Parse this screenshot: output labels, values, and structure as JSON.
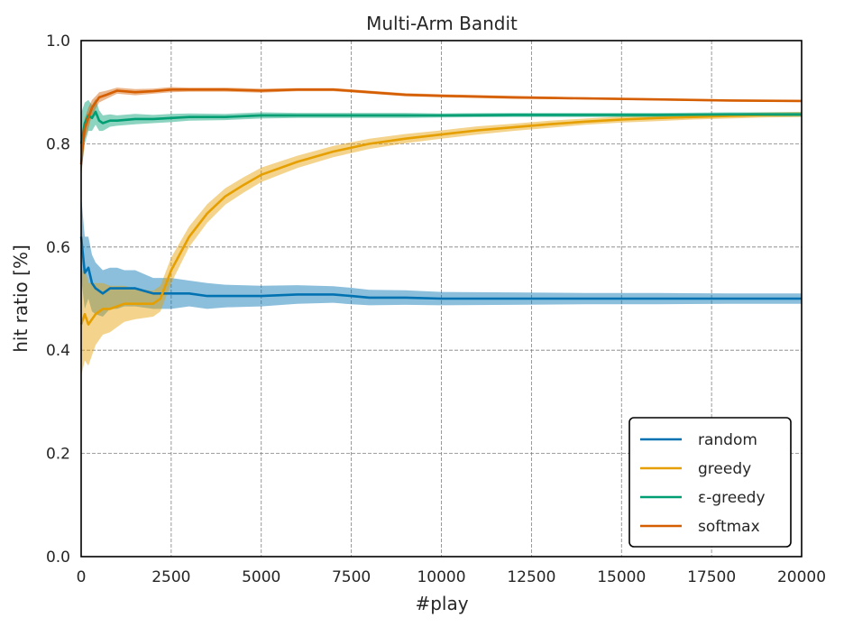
{
  "chart_data": {
    "type": "line",
    "title": "Multi-Arm Bandit",
    "xlabel": "#play",
    "ylabel": "hit ratio [%]",
    "xlim": [
      0,
      20000
    ],
    "ylim": [
      0.0,
      1.0
    ],
    "x_ticks": [
      0,
      2500,
      5000,
      7500,
      10000,
      12500,
      15000,
      17500,
      20000
    ],
    "y_ticks": [
      0.0,
      0.2,
      0.4,
      0.6,
      0.8,
      1.0
    ],
    "x_tick_labels": [
      "0",
      "2500",
      "5000",
      "7500",
      "10000",
      "12500",
      "15000",
      "17500",
      "20000"
    ],
    "y_tick_labels": [
      "0.0",
      "0.2",
      "0.4",
      "0.6",
      "0.8",
      "1.0"
    ],
    "grid": true,
    "legend_position": "lower-right",
    "series": [
      {
        "name": "random",
        "color": "#0072b2",
        "x": [
          0,
          100,
          200,
          300,
          400,
          600,
          800,
          1000,
          1200,
          1500,
          2000,
          2500,
          3000,
          3500,
          4000,
          5000,
          6000,
          7000,
          7500,
          8000,
          9000,
          10000,
          12000,
          14000,
          16000,
          18000,
          20000
        ],
        "y": [
          0.62,
          0.55,
          0.56,
          0.53,
          0.52,
          0.51,
          0.52,
          0.52,
          0.52,
          0.52,
          0.51,
          0.51,
          0.51,
          0.505,
          0.505,
          0.505,
          0.508,
          0.508,
          0.505,
          0.502,
          0.502,
          0.5,
          0.5,
          0.5,
          0.5,
          0.5,
          0.5
        ],
        "band": [
          0.08,
          0.07,
          0.06,
          0.055,
          0.05,
          0.045,
          0.04,
          0.04,
          0.035,
          0.035,
          0.03,
          0.03,
          0.025,
          0.025,
          0.022,
          0.02,
          0.018,
          0.016,
          0.016,
          0.015,
          0.014,
          0.013,
          0.012,
          0.011,
          0.011,
          0.01,
          0.01
        ]
      },
      {
        "name": "greedy",
        "color": "#e69f00",
        "x": [
          0,
          100,
          200,
          300,
          400,
          600,
          800,
          1000,
          1200,
          1500,
          2000,
          2200,
          2500,
          3000,
          3500,
          4000,
          4500,
          5000,
          6000,
          7000,
          8000,
          9000,
          10000,
          11000,
          12000,
          13000,
          14000,
          15000,
          16000,
          17000,
          18000,
          19000,
          20000
        ],
        "y": [
          0.45,
          0.47,
          0.45,
          0.46,
          0.47,
          0.48,
          0.48,
          0.485,
          0.49,
          0.49,
          0.49,
          0.5,
          0.555,
          0.62,
          0.665,
          0.698,
          0.72,
          0.74,
          0.765,
          0.785,
          0.8,
          0.81,
          0.818,
          0.826,
          0.832,
          0.838,
          0.843,
          0.847,
          0.85,
          0.852,
          0.854,
          0.856,
          0.857
        ],
        "band": [
          0.1,
          0.09,
          0.08,
          0.07,
          0.06,
          0.05,
          0.045,
          0.04,
          0.035,
          0.03,
          0.025,
          0.025,
          0.025,
          0.02,
          0.018,
          0.016,
          0.015,
          0.014,
          0.012,
          0.011,
          0.01,
          0.009,
          0.008,
          0.008,
          0.007,
          0.007,
          0.006,
          0.006,
          0.006,
          0.005,
          0.005,
          0.005,
          0.005
        ]
      },
      {
        "name": "ε-greedy",
        "color": "#009e73",
        "x": [
          0,
          100,
          200,
          300,
          400,
          500,
          600,
          800,
          1000,
          1500,
          2000,
          2500,
          3000,
          4000,
          5000,
          6000,
          7000,
          8000,
          9000,
          10000,
          12000,
          14000,
          16000,
          18000,
          20000
        ],
        "y": [
          0.8,
          0.84,
          0.855,
          0.85,
          0.862,
          0.845,
          0.84,
          0.845,
          0.845,
          0.848,
          0.848,
          0.85,
          0.852,
          0.852,
          0.855,
          0.855,
          0.855,
          0.855,
          0.855,
          0.855,
          0.856,
          0.856,
          0.856,
          0.857,
          0.857
        ],
        "band": [
          0.06,
          0.04,
          0.03,
          0.025,
          0.025,
          0.02,
          0.015,
          0.012,
          0.01,
          0.01,
          0.008,
          0.008,
          0.007,
          0.006,
          0.006,
          0.005,
          0.005,
          0.005,
          0.005,
          0.004,
          0.004,
          0.004,
          0.004,
          0.004,
          0.004
        ]
      },
      {
        "name": "softmax",
        "color": "#d55e00",
        "x": [
          0,
          50,
          100,
          200,
          300,
          400,
          500,
          700,
          1000,
          1500,
          2000,
          2500,
          3000,
          4000,
          5000,
          6000,
          7000,
          8000,
          9000,
          10000,
          12000,
          14000,
          16000,
          18000,
          20000
        ],
        "y": [
          0.76,
          0.8,
          0.83,
          0.85,
          0.87,
          0.88,
          0.89,
          0.895,
          0.903,
          0.9,
          0.902,
          0.905,
          0.905,
          0.905,
          0.903,
          0.905,
          0.905,
          0.9,
          0.895,
          0.893,
          0.89,
          0.888,
          0.886,
          0.884,
          0.883
        ],
        "band": [
          0.03,
          0.025,
          0.02,
          0.02,
          0.015,
          0.012,
          0.01,
          0.008,
          0.006,
          0.006,
          0.005,
          0.005,
          0.004,
          0.004,
          0.004,
          0.003,
          0.003,
          0.003,
          0.003,
          0.003,
          0.003,
          0.002,
          0.002,
          0.002,
          0.002
        ]
      }
    ]
  }
}
